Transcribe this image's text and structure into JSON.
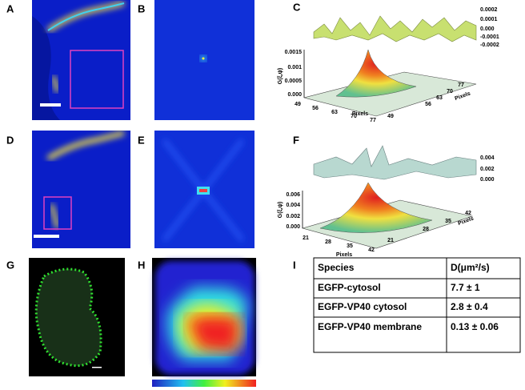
{
  "panels": [
    "A",
    "B",
    "C",
    "D",
    "E",
    "F",
    "G",
    "H",
    "I"
  ],
  "plot_c": {
    "right_ticks": [
      "0.0002",
      "0.0001",
      "0.000",
      "-0.0001",
      "-0.0002"
    ],
    "z_label": "G(ξ,ψ)",
    "z_ticks": [
      "0.0015",
      "0.001",
      "0.0005",
      "0.000"
    ],
    "x_label": "Pixels",
    "x_ticks": [
      "49",
      "56",
      "63",
      "70",
      "77"
    ],
    "y_label": "Pixels",
    "y_ticks": [
      "49",
      "56",
      "63",
      "70",
      "77"
    ]
  },
  "plot_f": {
    "right_ticks": [
      "0.004",
      "0.002",
      "0.000"
    ],
    "z_label": "G(ξ,ψ)",
    "z_ticks": [
      "0.006",
      "0.004",
      "0.002",
      "0.000"
    ],
    "x_label": "Pixels",
    "x_ticks": [
      "21",
      "28",
      "35",
      "42"
    ],
    "y_label": "Pixels",
    "y_ticks": [
      "21",
      "28",
      "35",
      "42"
    ]
  },
  "table": {
    "header": [
      "Species",
      "D(μm²/s)"
    ],
    "rows": [
      [
        "EGFP-cytosol",
        "7.7 ±  1"
      ],
      [
        "EGFP-VP40 cytosol",
        "2.8 ± 0.4"
      ],
      [
        "EGFP-VP40 membrane",
        "0.13 ±  0.06"
      ]
    ]
  }
}
